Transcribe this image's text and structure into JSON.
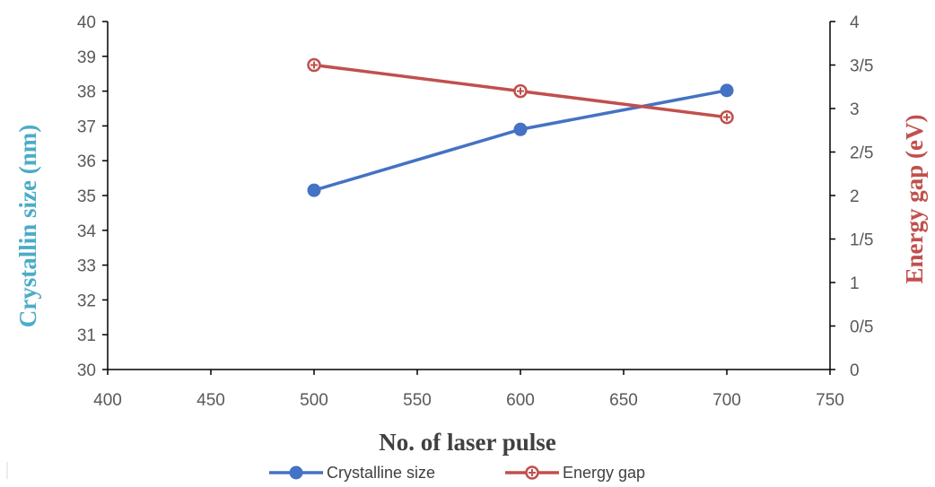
{
  "chart_data": {
    "type": "line",
    "x": [
      500,
      600,
      700
    ],
    "xlabel": "No. of laser pulse",
    "xlim": [
      400,
      750
    ],
    "xticks": [
      "400",
      "450",
      "500",
      "550",
      "600",
      "650",
      "700",
      "750"
    ],
    "ylabel": "Crystallin size (nm)",
    "ylim": [
      30,
      40
    ],
    "yticks": [
      "30",
      "31",
      "32",
      "33",
      "34",
      "35",
      "36",
      "37",
      "38",
      "39",
      "40"
    ],
    "y2label": "Energy gap (eV)",
    "y2lim": [
      0,
      4
    ],
    "y2ticks": [
      "0",
      "0/5",
      "1",
      "1/5",
      "2",
      "2/5",
      "3",
      "3/5",
      "4"
    ],
    "grid": false,
    "legend_position": "bottom",
    "series": [
      {
        "name": "Crystalline size",
        "axis": "left",
        "values": [
          35.15,
          36.9,
          38.02
        ],
        "color": "#4472c4",
        "marker": "circle"
      },
      {
        "name": "Energy gap",
        "axis": "right",
        "values": [
          3.5,
          3.2,
          2.9
        ],
        "color": "#c0504d",
        "marker": "circle-plus"
      }
    ],
    "title_colors": {
      "left": "#4bacc6",
      "right": "#c0504d"
    }
  }
}
